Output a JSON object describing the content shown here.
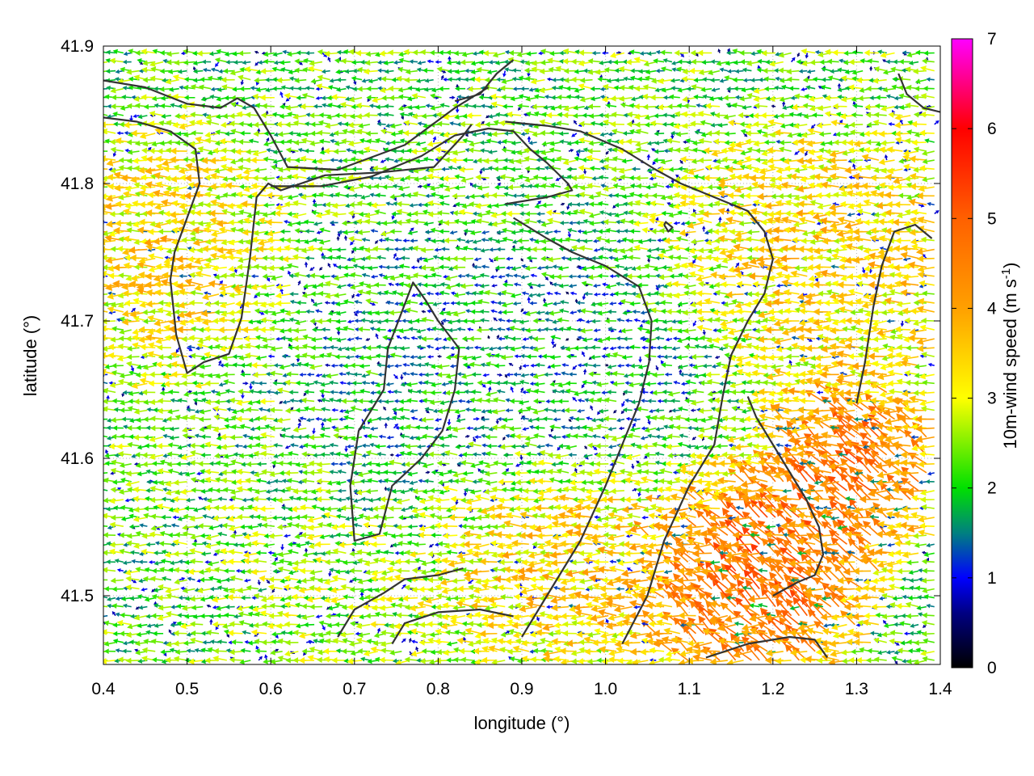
{
  "chart_data": {
    "type": "vector-field",
    "xlabel": "longitude (°)",
    "ylabel": "latitude (°)",
    "colorbar_label": "10m-wind speed (m s",
    "colorbar_label_sup": "-1",
    "colorbar_label_end": ")",
    "xlim": [
      0.4,
      1.4
    ],
    "ylim": [
      41.45,
      41.9
    ],
    "x_ticks": [
      0.4,
      0.5,
      0.6,
      0.7,
      0.8,
      0.9,
      1.0,
      1.1,
      1.2,
      1.3,
      1.4
    ],
    "x_tick_labels": [
      "0.4",
      "0.5",
      "0.6",
      "0.7",
      "0.8",
      "0.9",
      "1.0",
      "1.1",
      "1.2",
      "1.3",
      "1.4"
    ],
    "y_ticks": [
      41.5,
      41.6,
      41.7,
      41.8,
      41.9
    ],
    "y_tick_labels": [
      "41.5",
      "41.6",
      "41.7",
      "41.8",
      "41.9"
    ],
    "colorbar_range": [
      0,
      7
    ],
    "colorbar_ticks": [
      0,
      1,
      2,
      3,
      4,
      5,
      6,
      7
    ],
    "colorbar_tick_labels": [
      "0",
      "1",
      "2",
      "3",
      "4",
      "5",
      "6",
      "7"
    ],
    "colormap_stops": [
      {
        "value": 0,
        "color": "#000000"
      },
      {
        "value": 0.6,
        "color": "#000080"
      },
      {
        "value": 1.0,
        "color": "#0000ff"
      },
      {
        "value": 1.5,
        "color": "#008080"
      },
      {
        "value": 2.0,
        "color": "#00e000"
      },
      {
        "value": 3.0,
        "color": "#ffff00"
      },
      {
        "value": 4.0,
        "color": "#ffa000"
      },
      {
        "value": 5.0,
        "color": "#ff6000"
      },
      {
        "value": 6.0,
        "color": "#ff0000"
      },
      {
        "value": 7.0,
        "color": "#ff00ff"
      }
    ],
    "grid": true,
    "predominant_wind_direction": "westward",
    "wind_speed_regions": [
      {
        "lon": [
          0.4,
          0.55
        ],
        "lat": [
          41.7,
          41.8
        ],
        "speed": 3.5
      },
      {
        "lon": [
          0.6,
          0.75
        ],
        "lat": [
          41.45,
          41.55
        ],
        "speed": 2.5
      },
      {
        "lon": [
          0.7,
          0.85
        ],
        "lat": [
          41.58,
          41.72
        ],
        "speed": 1.6
      },
      {
        "lon": [
          0.85,
          1.1
        ],
        "lat": [
          41.48,
          41.58
        ],
        "speed": 3.6
      },
      {
        "lon": [
          0.9,
          1.1
        ],
        "lat": [
          41.6,
          41.72
        ],
        "speed": 1.5
      },
      {
        "lon": [
          1.1,
          1.25
        ],
        "lat": [
          41.47,
          41.56
        ],
        "speed": 5.3
      },
      {
        "lon": [
          1.25,
          1.35
        ],
        "lat": [
          41.56,
          41.63
        ],
        "speed": 5.0
      },
      {
        "lon": [
          1.15,
          1.4
        ],
        "lat": [
          41.68,
          41.8
        ],
        "speed": 3.5
      }
    ],
    "contour_lines": [
      [
        [
          0.4,
          41.875
        ],
        [
          0.45,
          41.87
        ],
        [
          0.5,
          41.858
        ],
        [
          0.54,
          41.855
        ],
        [
          0.56,
          41.862
        ],
        [
          0.58,
          41.855
        ],
        [
          0.6,
          41.835
        ],
        [
          0.62,
          41.812
        ],
        [
          0.68,
          41.81
        ],
        [
          0.76,
          41.828
        ],
        [
          0.82,
          41.855
        ],
        [
          0.86,
          41.87
        ]
      ],
      [
        [
          0.4,
          41.848
        ],
        [
          0.44,
          41.845
        ],
        [
          0.48,
          41.838
        ],
        [
          0.51,
          41.825
        ],
        [
          0.515,
          41.8
        ],
        [
          0.5,
          41.775
        ],
        [
          0.485,
          41.75
        ],
        [
          0.48,
          41.73
        ],
        [
          0.487,
          41.69
        ],
        [
          0.5,
          41.662
        ],
        [
          0.52,
          41.67
        ],
        [
          0.55,
          41.676
        ],
        [
          0.565,
          41.702
        ],
        [
          0.575,
          41.745
        ],
        [
          0.583,
          41.79
        ],
        [
          0.597,
          41.8
        ],
        [
          0.612,
          41.795
        ],
        [
          0.665,
          41.806
        ],
        [
          0.73,
          41.808
        ],
        [
          0.795,
          41.812
        ],
        [
          0.83,
          41.835
        ],
        [
          0.84,
          41.843
        ]
      ],
      [
        [
          0.6,
          41.798
        ],
        [
          0.66,
          41.798
        ],
        [
          0.72,
          41.805
        ],
        [
          0.78,
          41.82
        ],
        [
          0.82,
          41.835
        ],
        [
          0.86,
          41.84
        ],
        [
          0.89,
          41.838
        ],
        [
          0.91,
          41.825
        ],
        [
          0.93,
          41.815
        ],
        [
          0.955,
          41.8
        ],
        [
          0.96,
          41.795
        ],
        [
          0.93,
          41.79
        ],
        [
          0.88,
          41.785
        ]
      ],
      [
        [
          0.74,
          41.68
        ],
        [
          0.77,
          41.728
        ],
        [
          0.785,
          41.715
        ],
        [
          0.8,
          41.7
        ],
        [
          0.825,
          41.68
        ],
        [
          0.82,
          41.65
        ],
        [
          0.805,
          41.62
        ],
        [
          0.78,
          41.6
        ],
        [
          0.745,
          41.58
        ],
        [
          0.73,
          41.545
        ],
        [
          0.7,
          41.54
        ],
        [
          0.695,
          41.58
        ],
        [
          0.705,
          41.62
        ],
        [
          0.735,
          41.65
        ],
        [
          0.74,
          41.68
        ]
      ],
      [
        [
          0.83,
          41.52
        ],
        [
          0.8,
          41.515
        ],
        [
          0.76,
          41.512
        ],
        [
          0.735,
          41.502
        ],
        [
          0.7,
          41.49
        ],
        [
          0.68,
          41.47
        ]
      ],
      [
        [
          0.745,
          41.465
        ],
        [
          0.76,
          41.48
        ],
        [
          0.8,
          41.488
        ],
        [
          0.85,
          41.49
        ],
        [
          0.89,
          41.485
        ]
      ],
      [
        [
          0.89,
          41.775
        ],
        [
          0.93,
          41.76
        ],
        [
          0.96,
          41.75
        ],
        [
          1.0,
          41.74
        ],
        [
          1.04,
          41.725
        ],
        [
          1.055,
          41.7
        ],
        [
          1.052,
          41.67
        ],
        [
          1.04,
          41.64
        ],
        [
          1.02,
          41.61
        ],
        [
          1.0,
          41.58
        ],
        [
          0.97,
          41.54
        ],
        [
          0.94,
          41.51
        ],
        [
          0.92,
          41.49
        ],
        [
          0.9,
          41.47
        ]
      ],
      [
        [
          0.88,
          41.845
        ],
        [
          0.93,
          41.842
        ],
        [
          0.97,
          41.838
        ],
        [
          1.02,
          41.825
        ],
        [
          1.06,
          41.81
        ],
        [
          1.09,
          41.8
        ],
        [
          1.13,
          41.79
        ],
        [
          1.17,
          41.78
        ],
        [
          1.19,
          41.765
        ],
        [
          1.2,
          41.745
        ],
        [
          1.19,
          41.72
        ],
        [
          1.17,
          41.7
        ],
        [
          1.15,
          41.675
        ],
        [
          1.14,
          41.645
        ],
        [
          1.13,
          41.61
        ],
        [
          1.1,
          41.58
        ],
        [
          1.07,
          41.54
        ],
        [
          1.05,
          41.5
        ],
        [
          1.02,
          41.465
        ]
      ],
      [
        [
          1.07,
          41.77
        ],
        [
          1.075,
          41.765
        ],
        [
          1.08,
          41.768
        ],
        [
          1.072,
          41.772
        ],
        [
          1.07,
          41.77
        ]
      ],
      [
        [
          1.2,
          41.5
        ],
        [
          1.23,
          41.51
        ],
        [
          1.25,
          41.515
        ],
        [
          1.26,
          41.53
        ],
        [
          1.255,
          41.55
        ],
        [
          1.24,
          41.57
        ],
        [
          1.22,
          41.59
        ],
        [
          1.2,
          41.61
        ],
        [
          1.18,
          41.63
        ],
        [
          1.17,
          41.645
        ]
      ],
      [
        [
          1.12,
          41.455
        ],
        [
          1.17,
          41.465
        ],
        [
          1.22,
          41.47
        ],
        [
          1.25,
          41.468
        ],
        [
          1.265,
          41.455
        ]
      ],
      [
        [
          1.3,
          41.64
        ],
        [
          1.31,
          41.67
        ],
        [
          1.32,
          41.71
        ],
        [
          1.33,
          41.74
        ],
        [
          1.345,
          41.765
        ],
        [
          1.37,
          41.77
        ],
        [
          1.39,
          41.76
        ]
      ],
      [
        [
          1.35,
          41.88
        ],
        [
          1.36,
          41.865
        ],
        [
          1.38,
          41.855
        ],
        [
          1.4,
          41.852
        ]
      ],
      [
        [
          0.82,
          41.86
        ],
        [
          0.85,
          41.865
        ],
        [
          0.87,
          41.88
        ],
        [
          0.89,
          41.89
        ]
      ]
    ]
  }
}
